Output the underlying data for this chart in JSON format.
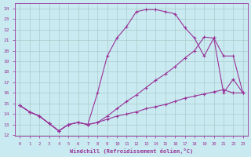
{
  "xlabel": "Windchill (Refroidissement éolien,°C)",
  "bg_color": "#c8eaf0",
  "grid_color": "#aacccc",
  "line_color": "#993399",
  "xlim": [
    -0.5,
    23.5
  ],
  "ylim": [
    11.9,
    24.5
  ],
  "xticks": [
    0,
    1,
    2,
    3,
    4,
    5,
    6,
    7,
    8,
    9,
    10,
    11,
    12,
    13,
    14,
    15,
    16,
    17,
    18,
    19,
    20,
    21,
    22,
    23
  ],
  "yticks": [
    12,
    13,
    14,
    15,
    16,
    17,
    18,
    19,
    20,
    21,
    22,
    23,
    24
  ],
  "line1_x": [
    0,
    1,
    2,
    3,
    4,
    5,
    6,
    7,
    8,
    9,
    10,
    11,
    12,
    13,
    14,
    15,
    16,
    17,
    18,
    19,
    20,
    21,
    22,
    23
  ],
  "line1_y": [
    14.8,
    14.2,
    13.8,
    13.1,
    12.4,
    13.0,
    13.2,
    13.0,
    16.0,
    19.5,
    21.2,
    22.3,
    23.7,
    23.9,
    23.9,
    23.7,
    23.5,
    22.2,
    21.2,
    19.5,
    21.2,
    16.0,
    17.3,
    16.0
  ],
  "line2_x": [
    0,
    1,
    2,
    3,
    4,
    5,
    6,
    7,
    8,
    9,
    10,
    11,
    12,
    13,
    14,
    15,
    16,
    17,
    18,
    19,
    20,
    21,
    22,
    23
  ],
  "line2_y": [
    14.8,
    14.2,
    13.8,
    13.1,
    12.4,
    13.0,
    13.2,
    13.0,
    13.2,
    13.8,
    14.5,
    15.2,
    15.8,
    16.5,
    17.2,
    17.8,
    18.5,
    19.3,
    20.0,
    21.3,
    21.2,
    19.5,
    19.5,
    16.0
  ],
  "line3_x": [
    0,
    1,
    2,
    3,
    4,
    5,
    6,
    7,
    8,
    9,
    10,
    11,
    12,
    13,
    14,
    15,
    16,
    17,
    18,
    19,
    20,
    21,
    22,
    23
  ],
  "line3_y": [
    14.8,
    14.2,
    13.8,
    13.1,
    12.4,
    13.0,
    13.2,
    13.0,
    13.2,
    13.5,
    13.8,
    14.0,
    14.2,
    14.5,
    14.7,
    14.9,
    15.2,
    15.5,
    15.7,
    15.9,
    16.1,
    16.3,
    16.0,
    16.0
  ]
}
